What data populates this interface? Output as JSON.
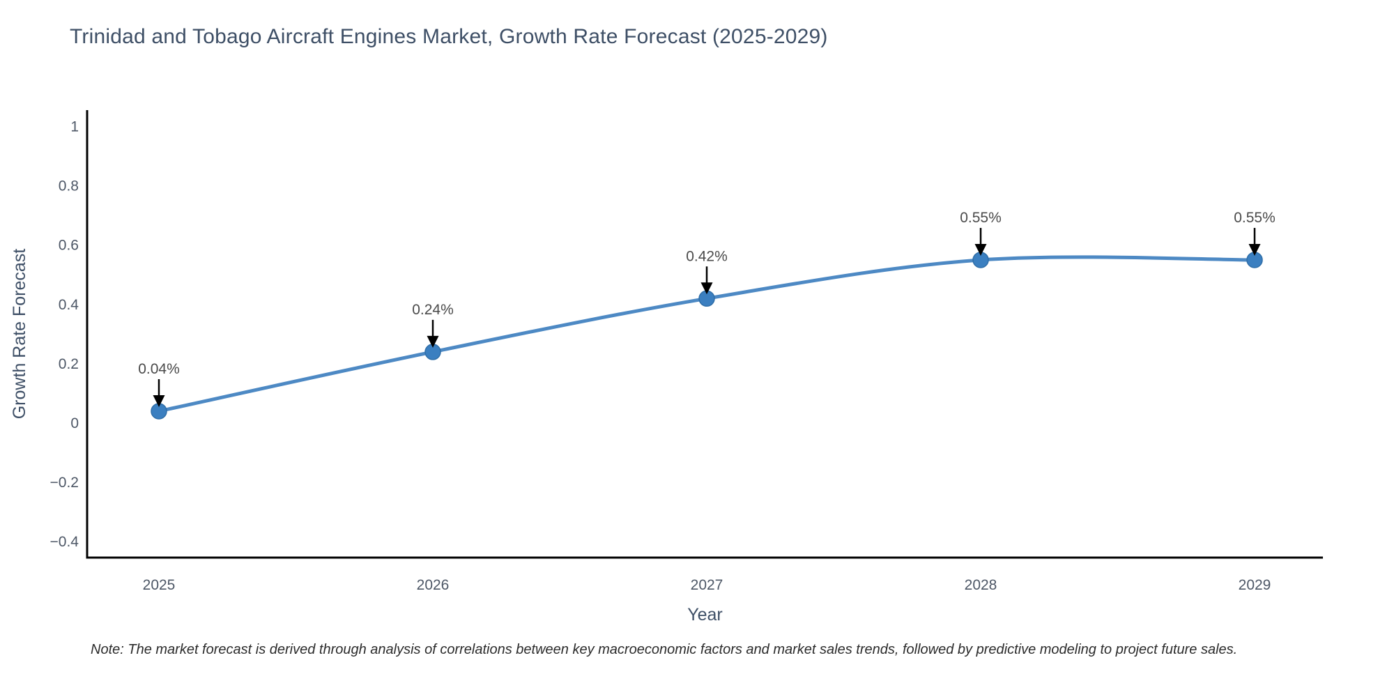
{
  "chart_data": {
    "type": "line",
    "title": "Trinidad and Tobago Aircraft Engines Market, Growth Rate Forecast (2025-2029)",
    "x": [
      2025,
      2026,
      2027,
      2028,
      2029
    ],
    "series": [
      {
        "name": "Growth Rate Forecast",
        "values": [
          0.04,
          0.24,
          0.42,
          0.55,
          0.55
        ]
      }
    ],
    "point_labels": [
      "0.04%",
      "0.24%",
      "0.42%",
      "0.55%",
      "0.55%"
    ],
    "xlabel": "Year",
    "ylabel": "Growth Rate Forecast",
    "ylim": [
      -0.45,
      1.06
    ],
    "yticks": [
      1,
      0.8,
      0.6,
      0.4,
      0.2,
      0,
      -0.2,
      -0.4
    ],
    "grid": false,
    "legend_position": "none",
    "colors": {
      "line": "#4d89c4",
      "marker": "#3b7fc0",
      "marker_border": "#2f6ea8",
      "arrow": "#000000",
      "annotation_text": "#4a4a4a",
      "axis": "#000000",
      "tick_text": "#4d5766",
      "title_text": "#3e4f66"
    }
  },
  "note": "Note: The market forecast is derived through analysis of correlations between key macroeconomic factors and market sales trends, followed by predictive modeling to project future sales."
}
